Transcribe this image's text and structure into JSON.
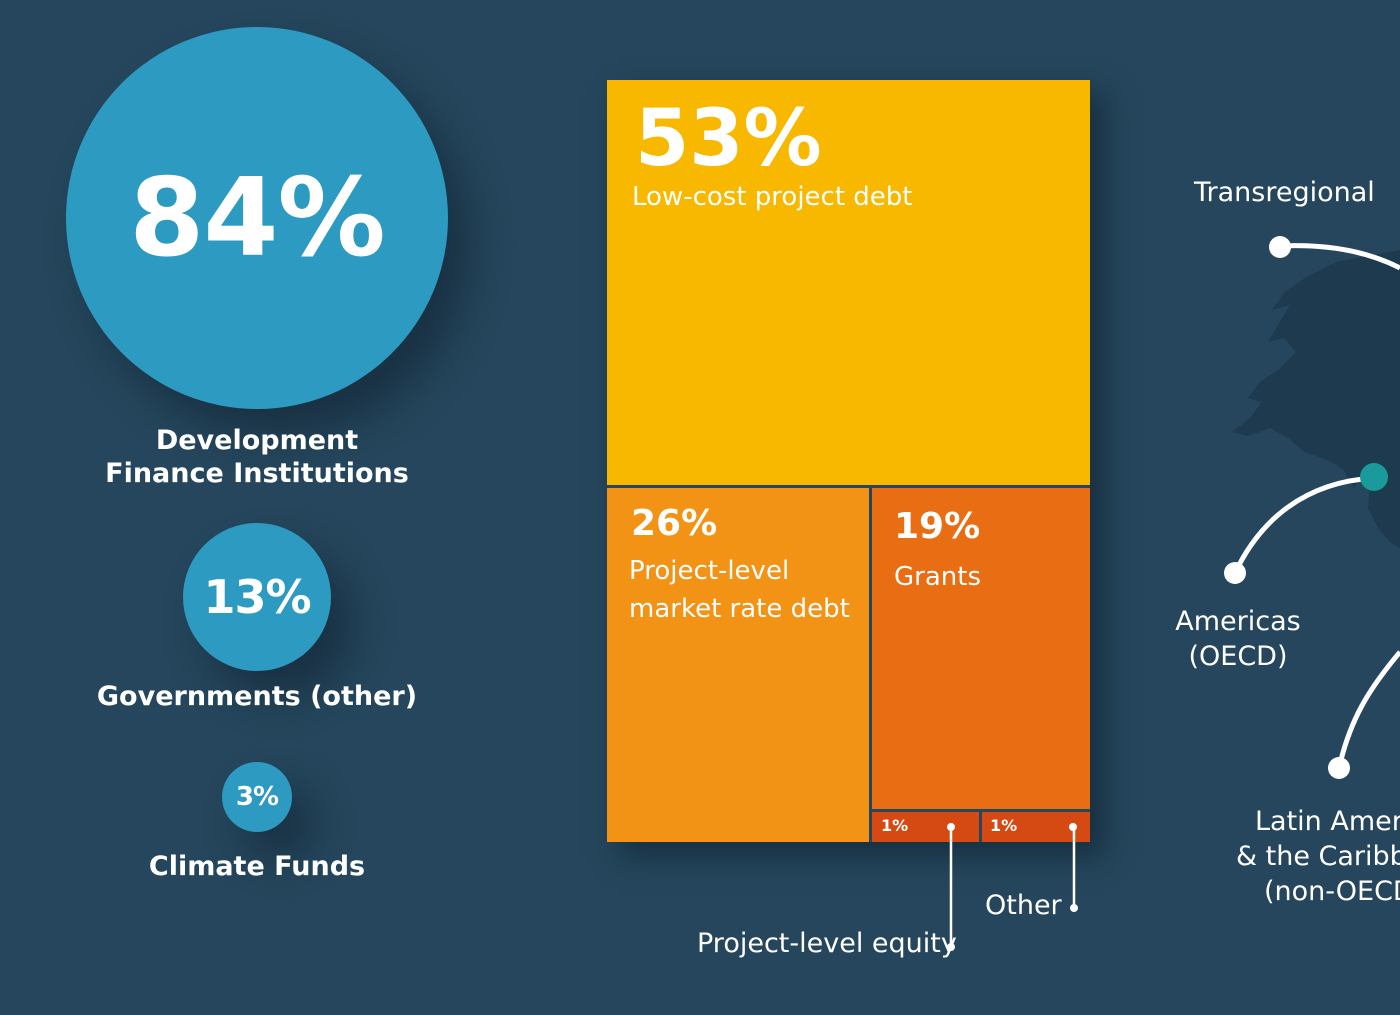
{
  "colors": {
    "background": "#25465c",
    "circle": "#2d9ac2",
    "low_cost_debt": "#f8b800",
    "market_rate_debt": "#f29315",
    "grants": "#e96d12",
    "small_segments": "#d44a12",
    "map_land": "#1d3a4e",
    "teal_marker": "#1a9a9a"
  },
  "sources": [
    {
      "value": "84%",
      "label_line1": "Development",
      "label_line2": "Finance Institutions"
    },
    {
      "value": "13%",
      "label": "Governments (other)"
    },
    {
      "value": "3%",
      "label": "Climate Funds"
    }
  ],
  "chart_data": {
    "type": "treemap",
    "title": "",
    "values": [
      {
        "label": "Low-cost project debt",
        "pct_text": "53%",
        "value": 53
      },
      {
        "label": "Project-level market rate debt",
        "pct_text": "26%",
        "value": 26
      },
      {
        "label": "Grants",
        "pct_text": "19%",
        "value": 19
      },
      {
        "label": "Project-level equity",
        "pct_text": "1%",
        "value": 1
      },
      {
        "label": "Other",
        "pct_text": "1%",
        "value": 1
      }
    ],
    "cell_labels": {
      "market_line1": "Project-level",
      "market_line2": "market rate debt"
    }
  },
  "regions": {
    "transregional": "Transregional",
    "americas_line1": "Americas",
    "americas_line2": "(OECD)",
    "latam_line1": "Latin Ameri",
    "latam_line2": "& the Caribb",
    "latam_line3": "(non-OECD"
  }
}
